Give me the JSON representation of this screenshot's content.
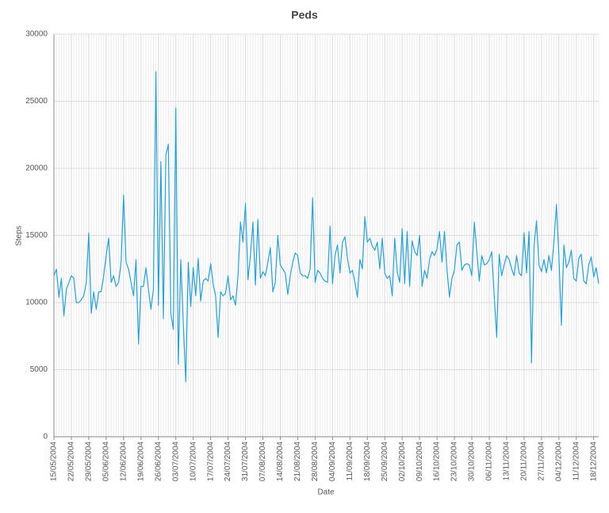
{
  "chart_data": {
    "type": "line",
    "title": "Peds",
    "xlabel": "Date",
    "ylabel": "Steps",
    "categories": [
      "15/05/2004",
      null,
      null,
      null,
      null,
      null,
      null,
      "22/05/2004",
      null,
      null,
      null,
      null,
      null,
      null,
      "29/05/2004",
      null,
      null,
      null,
      null,
      null,
      null,
      "05/06/2004",
      null,
      null,
      null,
      null,
      null,
      null,
      "12/06/2004",
      null,
      null,
      null,
      null,
      null,
      null,
      "19/06/2004",
      null,
      null,
      null,
      null,
      null,
      null,
      "26/06/2004",
      null,
      null,
      null,
      null,
      null,
      null,
      "03/07/2004",
      null,
      null,
      null,
      null,
      null,
      null,
      "10/07/2004",
      null,
      null,
      null,
      null,
      null,
      null,
      "17/07/2004",
      null,
      null,
      null,
      null,
      null,
      null,
      "24/07/2004",
      null,
      null,
      null,
      null,
      null,
      null,
      "31/07/2004",
      null,
      null,
      null,
      null,
      null,
      null,
      "07/08/2004",
      null,
      null,
      null,
      null,
      null,
      null,
      "14/08/2004",
      null,
      null,
      null,
      null,
      null,
      null,
      "21/08/2004",
      null,
      null,
      null,
      null,
      null,
      null,
      "28/08/2004",
      null,
      null,
      null,
      null,
      null,
      null,
      "04/09/2004",
      null,
      null,
      null,
      null,
      null,
      null,
      "11/09/2004",
      null,
      null,
      null,
      null,
      null,
      null,
      "18/09/2004",
      null,
      null,
      null,
      null,
      null,
      null,
      "25/09/2004",
      null,
      null,
      null,
      null,
      null,
      null,
      "02/10/2004",
      null,
      null,
      null,
      null,
      null,
      null,
      "09/10/2004",
      null,
      null,
      null,
      null,
      null,
      null,
      "16/10/2004",
      null,
      null,
      null,
      null,
      null,
      null,
      "23/10/2004",
      null,
      null,
      null,
      null,
      null,
      null,
      "30/10/2004",
      null,
      null,
      null,
      null,
      null,
      null,
      "06/11/2004",
      null,
      null,
      null,
      null,
      null,
      null,
      "13/11/2004",
      null,
      null,
      null,
      null,
      null,
      null,
      "20/11/2004",
      null,
      null,
      null,
      null,
      null,
      null,
      "27/11/2004",
      null,
      null,
      null,
      null,
      null,
      null,
      "04/12/2004",
      null,
      null,
      null,
      null,
      null,
      null,
      "11/12/2004",
      null,
      null,
      null,
      null,
      null,
      null,
      "18/12/2004",
      null,
      null
    ],
    "values": [
      12000,
      12500,
      10400,
      11800,
      9000,
      11000,
      11500,
      12000,
      11800,
      10000,
      10000,
      10200,
      10500,
      11500,
      15200,
      9200,
      10800,
      9500,
      10800,
      10800,
      12000,
      13500,
      14800,
      11500,
      12000,
      11200,
      11500,
      13000,
      18000,
      13000,
      12500,
      11500,
      10500,
      13200,
      6900,
      11200,
      11200,
      12600,
      11000,
      9500,
      11000,
      27200,
      9800,
      20500,
      8800,
      21000,
      21800,
      9200,
      8000,
      24500,
      5400,
      13200,
      8500,
      4100,
      13000,
      9700,
      12600,
      10500,
      13300,
      10100,
      11600,
      11800,
      11600,
      12900,
      11400,
      10500,
      7400,
      10800,
      10500,
      10700,
      12000,
      10200,
      10500,
      9800,
      12000,
      16000,
      14500,
      17400,
      11700,
      13500,
      16000,
      11300,
      16200,
      11800,
      12300,
      12000,
      13000,
      14100,
      10800,
      11500,
      15000,
      12800,
      12500,
      12200,
      10600,
      12000,
      13000,
      13700,
      13500,
      12200,
      12000,
      12000,
      11800,
      12500,
      17800,
      11500,
      12400,
      12200,
      11800,
      11600,
      11500,
      15700,
      11400,
      13500,
      14300,
      12200,
      14500,
      14900,
      13300,
      12200,
      12400,
      11500,
      10400,
      13200,
      12500,
      16400,
      14500,
      14800,
      14200,
      13900,
      14500,
      12500,
      14800,
      12200,
      11800,
      12000,
      10500,
      14800,
      12300,
      11500,
      15500,
      11400,
      15300,
      11200,
      14600,
      13800,
      13500,
      15000,
      11200,
      12400,
      11800,
      13200,
      13800,
      13500,
      14000,
      15300,
      13000,
      15300,
      12500,
      10400,
      11800,
      12400,
      14300,
      14500,
      12400,
      12800,
      12900,
      12800,
      12000,
      16000,
      13800,
      11600,
      13500,
      12800,
      12900,
      13200,
      13800,
      10500,
      7400,
      13600,
      12000,
      12800,
      13500,
      13200,
      12500,
      12000,
      13500,
      12200,
      12000,
      15200,
      12200,
      15300,
      5500,
      14200,
      16100,
      12800,
      12300,
      13200,
      12200,
      13500,
      12400,
      14500,
      17300,
      13500,
      8300,
      14300,
      12600,
      13000,
      13900,
      11800,
      11600,
      13300,
      13600,
      11600,
      11400,
      12800,
      13400,
      11900,
      12600,
      11400
    ],
    "color": "#2b9fcf",
    "ylim": [
      0,
      30000
    ],
    "yticks": [
      0,
      5000,
      10000,
      15000,
      20000,
      25000,
      30000
    ],
    "grid": true
  }
}
